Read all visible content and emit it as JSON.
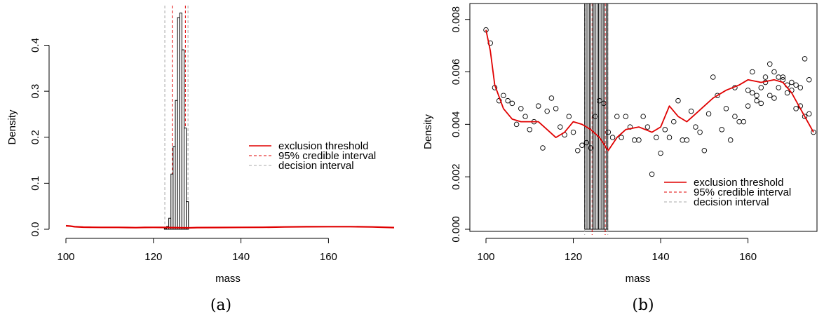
{
  "colors": {
    "curve": "#e00000",
    "credible": "#e00000",
    "decision": "#aaaaaa",
    "ink": "#000000"
  },
  "chart_data": [
    {
      "type": "histogram",
      "caption": "(a)",
      "xlabel": "mass",
      "ylabel": "Density",
      "xlim": [
        100,
        175
      ],
      "ylim": [
        0,
        0.48
      ],
      "xticks": [
        "100",
        "120",
        "140",
        "160"
      ],
      "yticks": [
        "0.0",
        "0.1",
        "0.2",
        "0.3",
        "0.4"
      ],
      "histogram": {
        "bin_edges": [
          122.5,
          123.0,
          123.5,
          124.0,
          124.5,
          125.0,
          125.5,
          126.0,
          126.5,
          127.0,
          127.5,
          128.0
        ],
        "density": [
          0.002,
          0.006,
          0.024,
          0.12,
          0.18,
          0.28,
          0.46,
          0.47,
          0.39,
          0.22,
          0.06,
          0.0
        ]
      },
      "threshold_curve": {
        "x": [
          100,
          101,
          102,
          104,
          106,
          108,
          110,
          112,
          114,
          116,
          118,
          120,
          122,
          124,
          126,
          128,
          130,
          135,
          140,
          145,
          150,
          155,
          160,
          165,
          170,
          175
        ],
        "y": [
          0.0076,
          0.0068,
          0.0055,
          0.0045,
          0.0042,
          0.0041,
          0.0041,
          0.0041,
          0.0038,
          0.0035,
          0.0039,
          0.0041,
          0.0039,
          0.0037,
          0.0034,
          0.0031,
          0.0036,
          0.0038,
          0.0041,
          0.0042,
          0.005,
          0.0055,
          0.0057,
          0.0057,
          0.005,
          0.0037
        ]
      },
      "credible_interval": [
        124.3,
        127.3
      ],
      "decision_interval": [
        122.6,
        127.9
      ],
      "legend": {
        "position": "right",
        "entries": [
          {
            "label": "exclusion threshold",
            "style": "solid-red"
          },
          {
            "label": "95% credible interval",
            "style": "dashed-red"
          },
          {
            "label": "decision interval",
            "style": "dashed-gray"
          }
        ]
      }
    },
    {
      "type": "scatter",
      "caption": "(b)",
      "xlabel": "mass",
      "ylabel": "Density",
      "xlim": [
        100,
        175
      ],
      "ylim": [
        0,
        0.0085
      ],
      "xticks": [
        "100",
        "120",
        "140",
        "160"
      ],
      "yticks": [
        "0.000",
        "0.002",
        "0.004",
        "0.006",
        "0.008"
      ],
      "points": {
        "x": [
          100,
          101,
          102,
          103,
          104,
          105,
          106,
          107,
          108,
          109,
          110,
          111,
          112,
          113,
          114,
          115,
          116,
          117,
          118,
          119,
          120,
          121,
          122,
          123,
          124,
          125,
          126,
          127,
          128,
          129,
          130,
          131,
          132,
          133,
          134,
          135,
          136,
          137,
          138,
          139,
          140,
          141,
          142,
          143,
          144,
          145,
          146,
          147,
          148,
          149,
          150,
          151,
          152,
          153,
          154,
          155,
          156,
          157,
          158,
          159,
          160,
          161,
          162,
          163,
          164,
          165,
          166,
          167,
          168,
          169,
          170,
          171,
          172,
          173,
          174
        ],
        "y": [
          0.0076,
          0.0071,
          0.0054,
          0.0049,
          0.0051,
          0.0049,
          0.0048,
          0.004,
          0.0046,
          0.0043,
          0.0038,
          0.0041,
          0.0047,
          0.0031,
          0.0045,
          0.005,
          0.0046,
          0.0039,
          0.0036,
          0.0043,
          0.0037,
          0.003,
          0.0032,
          0.0033,
          0.0031,
          0.0043,
          0.0049,
          0.0048,
          0.0037,
          0.0035,
          0.0043,
          0.0035,
          0.0043,
          0.0039,
          0.0034,
          0.0034,
          0.0043,
          0.0039,
          0.0021,
          0.0035,
          0.0029,
          0.0038,
          0.0035,
          0.0041,
          0.0049,
          0.0034,
          0.0034,
          0.0045,
          0.0039,
          0.0037,
          0.003,
          0.0044,
          0.0058,
          0.0051,
          0.0038,
          0.0046,
          0.0034,
          0.0043,
          0.0041,
          0.0041,
          0.0047,
          0.0052,
          0.0049,
          0.0048,
          0.0056,
          0.0051,
          0.005,
          0.0054,
          0.0058,
          0.0055,
          0.0056,
          0.0055,
          0.0054,
          0.0065,
          0.0057
        ],
        "extra": [
          {
            "x": 157,
            "y": 0.0054
          },
          {
            "x": 160,
            "y": 0.0053
          },
          {
            "x": 161,
            "y": 0.006
          },
          {
            "x": 162,
            "y": 0.0051
          },
          {
            "x": 163,
            "y": 0.0054
          },
          {
            "x": 164,
            "y": 0.0058
          },
          {
            "x": 165,
            "y": 0.0063
          },
          {
            "x": 166,
            "y": 0.006
          },
          {
            "x": 167,
            "y": 0.0058
          },
          {
            "x": 168,
            "y": 0.0057
          },
          {
            "x": 169,
            "y": 0.0052
          },
          {
            "x": 170,
            "y": 0.0053
          },
          {
            "x": 171,
            "y": 0.0046
          },
          {
            "x": 172,
            "y": 0.0047
          },
          {
            "x": 173,
            "y": 0.0043
          },
          {
            "x": 174,
            "y": 0.0044
          },
          {
            "x": 175,
            "y": 0.0037
          }
        ]
      },
      "threshold_curve": {
        "x": [
          100,
          101,
          102,
          104,
          106,
          108,
          110,
          112,
          114,
          116,
          118,
          120,
          122,
          124,
          126,
          128,
          130,
          132,
          135,
          138,
          140,
          142,
          144,
          146,
          148,
          150,
          152,
          155,
          158,
          160,
          163,
          166,
          168,
          170,
          172,
          175
        ],
        "y": [
          0.0076,
          0.0068,
          0.0055,
          0.0046,
          0.0042,
          0.0041,
          0.0041,
          0.0041,
          0.0038,
          0.0035,
          0.0037,
          0.0041,
          0.004,
          0.0038,
          0.0035,
          0.003,
          0.0035,
          0.0038,
          0.0039,
          0.0037,
          0.0039,
          0.0047,
          0.0043,
          0.0041,
          0.0044,
          0.0047,
          0.005,
          0.0053,
          0.0055,
          0.0057,
          0.0056,
          0.0057,
          0.0056,
          0.0052,
          0.0046,
          0.0037
        ]
      },
      "hatch_band": [
        122.6,
        128.0
      ],
      "credible_interval": [
        124.3,
        127.3
      ],
      "decision_interval": [
        122.6,
        127.9
      ],
      "legend": {
        "position": "right",
        "entries": [
          {
            "label": "exclusion threshold",
            "style": "solid-red"
          },
          {
            "label": "95% credible interval",
            "style": "dashed-red"
          },
          {
            "label": "decision interval",
            "style": "dashed-gray"
          }
        ]
      }
    }
  ]
}
